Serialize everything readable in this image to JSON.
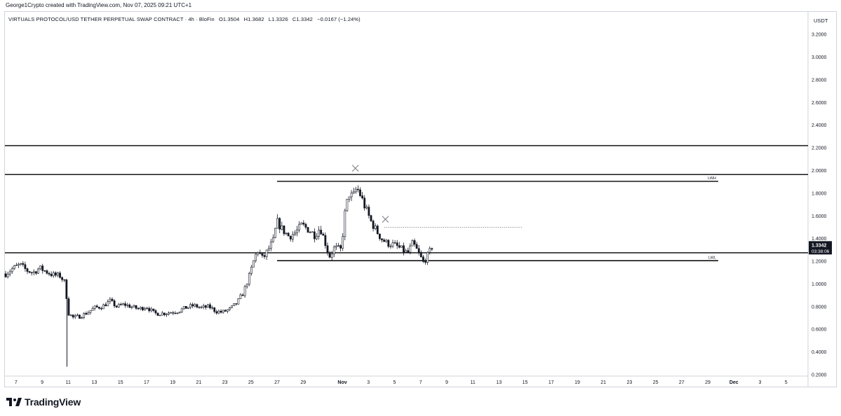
{
  "header": {
    "caption": "George1Crypto created with TradingView.com, Nov 07, 2025 09:21 UTC+1"
  },
  "legend": {
    "symbol": "VIRTUALS PROTOCOL/USD TETHER PERPETUAL SWAP CONTRACT · 4h · BloFin",
    "open": "O1.3504",
    "high": "H1.3682",
    "low": "L1.3326",
    "close": "C1.3342",
    "change": "−0.0167 (−1.24%)"
  },
  "price_axis": {
    "currency": "USDT",
    "last_price": "1.3342",
    "countdown": "03:38:06"
  },
  "brand": {
    "name": "TradingView"
  },
  "colors": {
    "up": "#131722",
    "down": "#131722",
    "line": "#000000",
    "dotted": "#9598a1",
    "marker": "#787b86"
  },
  "chart_data": {
    "type": "candlestick",
    "timeframe": "4h",
    "ylim": [
      0.2,
      3.3
    ],
    "yticks": [
      "3.2000",
      "3.0000",
      "2.8000",
      "2.6000",
      "2.4000",
      "2.2000",
      "2.0000",
      "1.8000",
      "1.6000",
      "1.4000",
      "1.2000",
      "1.0000",
      "0.8000",
      "0.6000",
      "0.4000",
      "0.2000"
    ],
    "xticks": [
      "7",
      "9",
      "11",
      "13",
      "15",
      "17",
      "19",
      "21",
      "23",
      "25",
      "27",
      "29",
      "Nov",
      "3",
      "5",
      "7",
      "9",
      "11",
      "13",
      "15",
      "17",
      "19",
      "21",
      "23",
      "25",
      "27",
      "29",
      "Dec",
      "3",
      "5"
    ],
    "xtick_days": [
      7,
      9,
      11,
      13,
      15,
      17,
      19,
      21,
      23,
      25,
      27,
      29,
      32,
      34,
      36,
      38,
      40,
      42,
      44,
      46,
      48,
      50,
      52,
      54,
      56,
      58,
      60,
      62,
      64,
      66
    ],
    "xlim_days": [
      6.2,
      67.2
    ],
    "close_anchors": [
      [
        6.2,
        1.09
      ],
      [
        6.8,
        1.14
      ],
      [
        7.3,
        1.17
      ],
      [
        7.8,
        1.12
      ],
      [
        8.3,
        1.1
      ],
      [
        8.8,
        1.14
      ],
      [
        9.3,
        1.11
      ],
      [
        9.8,
        1.08
      ],
      [
        10.4,
        1.07
      ],
      [
        10.8,
        1.0
      ],
      [
        10.95,
        0.75
      ],
      [
        11.4,
        0.7
      ],
      [
        12,
        0.72
      ],
      [
        12.5,
        0.75
      ],
      [
        13,
        0.79
      ],
      [
        13.6,
        0.8
      ],
      [
        14.2,
        0.85
      ],
      [
        14.7,
        0.8
      ],
      [
        15.3,
        0.82
      ],
      [
        15.8,
        0.8
      ],
      [
        16.4,
        0.78
      ],
      [
        17,
        0.8
      ],
      [
        17.6,
        0.74
      ],
      [
        18.2,
        0.74
      ],
      [
        18.8,
        0.75
      ],
      [
        19.4,
        0.76
      ],
      [
        20,
        0.79
      ],
      [
        20.6,
        0.81
      ],
      [
        21.2,
        0.79
      ],
      [
        21.8,
        0.8
      ],
      [
        22.3,
        0.76
      ],
      [
        22.8,
        0.75
      ],
      [
        23.4,
        0.78
      ],
      [
        23.9,
        0.83
      ],
      [
        24.4,
        0.92
      ],
      [
        24.9,
        1.08
      ],
      [
        25.2,
        1.2
      ],
      [
        25.5,
        1.3
      ],
      [
        25.9,
        1.22
      ],
      [
        26.3,
        1.3
      ],
      [
        26.7,
        1.38
      ],
      [
        27.0,
        1.55
      ],
      [
        27.4,
        1.48
      ],
      [
        27.9,
        1.42
      ],
      [
        28.4,
        1.45
      ],
      [
        28.9,
        1.52
      ],
      [
        29.4,
        1.48
      ],
      [
        29.9,
        1.43
      ],
      [
        30.3,
        1.5
      ],
      [
        30.7,
        1.36
      ],
      [
        31.0,
        1.24
      ],
      [
        31.4,
        1.32
      ],
      [
        31.9,
        1.3
      ],
      [
        32.2,
        1.62
      ],
      [
        32.5,
        1.8
      ],
      [
        32.8,
        1.76
      ],
      [
        33.1,
        1.85
      ],
      [
        33.4,
        1.78
      ],
      [
        33.8,
        1.66
      ],
      [
        34.2,
        1.55
      ],
      [
        34.6,
        1.47
      ],
      [
        35.0,
        1.4
      ],
      [
        35.4,
        1.36
      ],
      [
        35.8,
        1.35
      ],
      [
        36.2,
        1.33
      ],
      [
        36.6,
        1.3
      ],
      [
        37.0,
        1.27
      ],
      [
        37.4,
        1.36
      ],
      [
        37.8,
        1.28
      ],
      [
        38.2,
        1.19
      ],
      [
        38.6,
        1.26
      ],
      [
        38.9,
        1.3342
      ]
    ],
    "wicks": [
      {
        "day": 10.9,
        "low": 0.27,
        "high": 1.03
      }
    ],
    "horizontal_levels": [
      {
        "price": 2.22,
        "full_width": true
      },
      {
        "price": 1.965,
        "full_width": true
      },
      {
        "price": 1.275,
        "full_width": true
      },
      {
        "price": 1.905,
        "from_day": 27.0,
        "to_day": 60.8,
        "label": "LWH"
      },
      {
        "price": 1.205,
        "from_day": 27.0,
        "to_day": 60.8,
        "label": "LWL"
      },
      {
        "price": 1.5,
        "from_day": 35.2,
        "to_day": 45.8,
        "dotted": true
      }
    ],
    "markers": [
      {
        "day": 33.0,
        "price": 2.02
      },
      {
        "day": 35.3,
        "price": 1.57
      }
    ]
  }
}
